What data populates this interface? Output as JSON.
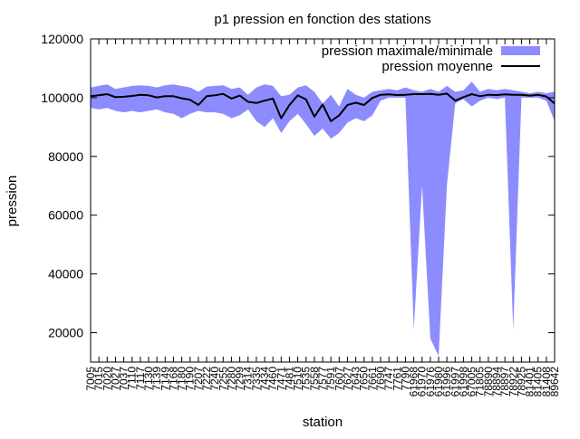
{
  "chart_data": {
    "type": "area",
    "title": "p1 pression en fonction des stations",
    "xlabel": "station",
    "ylabel": "pression",
    "ylim": [
      10000,
      120000
    ],
    "y_ticks": [
      20000,
      40000,
      60000,
      80000,
      100000,
      120000
    ],
    "y_tick_labels": [
      "20000",
      "40000",
      "60000",
      "80000",
      "100000",
      "120000"
    ],
    "legend_position": "top-right",
    "categories": [
      "7005",
      "7015",
      "7020",
      "7027",
      "7037",
      "7110",
      "7117",
      "7130",
      "7139",
      "7149",
      "7168",
      "7180",
      "7190",
      "7207",
      "7222",
      "7240",
      "7255",
      "7280",
      "7299",
      "7314",
      "7335",
      "7434",
      "7460",
      "7471",
      "7481",
      "7510",
      "7535",
      "7558",
      "7577",
      "7591",
      "7607",
      "7627",
      "7643",
      "7650",
      "7661",
      "7690",
      "7747",
      "7761",
      "7790",
      "61968",
      "61970",
      "61976",
      "61980",
      "61996",
      "61997",
      "61998",
      "67005",
      "71805",
      "78890",
      "78894",
      "78897",
      "78922",
      "78925",
      "81401",
      "81405",
      "81408",
      "89642"
    ],
    "series": [
      {
        "name": "pression maximale/minimale",
        "kind": "band",
        "color": "#8c8cff",
        "max": [
          103500,
          104000,
          104500,
          103000,
          103500,
          104000,
          104200,
          104000,
          103500,
          104200,
          104500,
          104000,
          103500,
          102000,
          103800,
          104000,
          104200,
          103000,
          103500,
          101000,
          103500,
          104500,
          104000,
          100500,
          101000,
          103500,
          104200,
          102000,
          98000,
          101000,
          97000,
          103000,
          101000,
          100000,
          102000,
          102500,
          103000,
          102500,
          103500,
          102500,
          102000,
          103000,
          102000,
          104000,
          102000,
          102500,
          105500,
          102000,
          103000,
          102500,
          103000,
          102500,
          102000,
          101500,
          102000,
          101500,
          102000
        ],
        "min": [
          96500,
          96000,
          96500,
          95500,
          95000,
          95500,
          95000,
          95500,
          96000,
          95000,
          94500,
          93000,
          94500,
          95500,
          95000,
          95000,
          94500,
          93000,
          94000,
          96000,
          92000,
          90000,
          93000,
          88000,
          92000,
          94500,
          91000,
          87000,
          89500,
          86000,
          88000,
          91500,
          93000,
          92000,
          94000,
          99000,
          100000,
          100000,
          100000,
          21000,
          70000,
          18000,
          12000,
          70000,
          98000,
          99500,
          97000,
          99000,
          100000,
          99500,
          100000,
          21000,
          100000,
          100000,
          100000,
          99000,
          92000
        ],
        "mean": [
          100500,
          100800,
          101200,
          100200,
          100300,
          100600,
          101000,
          100800,
          100100,
          100500,
          100500,
          99800,
          99300,
          97500,
          100500,
          100800,
          101300,
          99700,
          100700,
          98600,
          98200,
          99000,
          99700,
          93000,
          97500,
          100800,
          99400,
          93500,
          97700,
          92000,
          94000,
          97500,
          98300,
          97500,
          99900,
          101000,
          101100,
          100900,
          101000,
          101200,
          101200,
          101300,
          101000,
          101400,
          99000,
          100200,
          101200,
          100500,
          101000,
          100900,
          101100,
          101000,
          101000,
          100700,
          101000,
          100400,
          98000
        ]
      },
      {
        "name": "pression moyenne",
        "kind": "line",
        "color": "#000000"
      }
    ]
  }
}
